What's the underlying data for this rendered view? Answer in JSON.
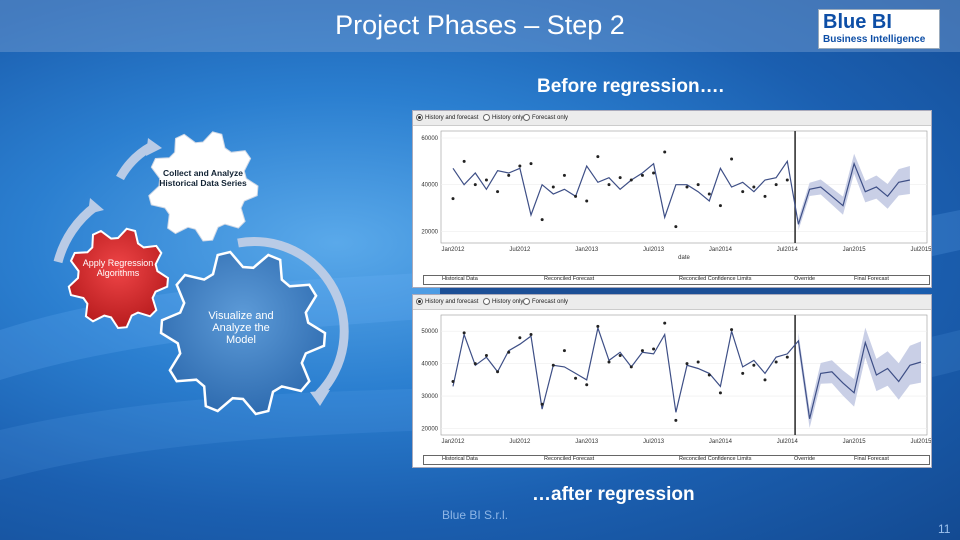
{
  "slide": {
    "title": "Project Phases – Step 2",
    "logo": {
      "line1": "Blue BI",
      "line2": "Business Intelligence"
    },
    "caption_before": "Before regression….",
    "caption_after": "…after regression",
    "footer": "Blue BI S.r.l.",
    "page_number": "11"
  },
  "gears": {
    "collect": "Collect and Analyze Historical Data Series",
    "apply": "Apply Regression Algorithms",
    "visualize": "Visualize and Analyze the Model"
  },
  "chart_controls": {
    "options": [
      "History and forecast",
      "History only",
      "Forecast only"
    ],
    "selected": "History and forecast"
  },
  "legend": [
    "Historical Data",
    "Reconciled Forecast",
    "Reconciled Confidence Limits",
    "Override",
    "Final Forecast"
  ],
  "colors": {
    "line": "#3e4f86",
    "band": "#c9cfe6",
    "gear_red": "#d6282a",
    "gear_blue": "#3f7ec0",
    "vline": "#333333"
  },
  "chart_data": [
    {
      "type": "line",
      "title": "",
      "xlabel": "date",
      "ylabel": "",
      "x_ticks": [
        "Jan2012",
        "Jul2012",
        "Jan2013",
        "Jul2013",
        "Jan2014",
        "Jul2014",
        "Jan2015",
        "Jul2015"
      ],
      "y_ticks": [
        20000,
        40000,
        60000
      ],
      "ylim": [
        15000,
        63000
      ],
      "history_end": "Jul2014",
      "series": [
        {
          "name": "Historical Data",
          "values": [
            34000,
            50000,
            40000,
            42000,
            37000,
            44000,
            48000,
            49000,
            25000,
            39000,
            44000,
            35000,
            33000,
            52000,
            40000,
            43000,
            42000,
            44000,
            45000,
            54000,
            22000,
            39000,
            40000,
            36000,
            31000,
            51000,
            37000,
            39000,
            35000,
            40000,
            42000
          ]
        },
        {
          "name": "Reconciled Forecast",
          "values": [
            47000,
            40000,
            45000,
            38000,
            46000,
            45000,
            47000,
            27000,
            40000,
            36000,
            38000,
            35000,
            48000,
            41000,
            43000,
            38000,
            42000,
            45000,
            49000,
            26000,
            40000,
            40000,
            37000,
            33000,
            47000,
            39000,
            41000,
            37000,
            42000,
            43000,
            50000,
            23000,
            38000,
            39000,
            35000,
            31000,
            49000,
            37000,
            39000,
            35000,
            41000,
            42000
          ]
        }
      ]
    },
    {
      "type": "line",
      "title": "",
      "xlabel": "",
      "ylabel": "",
      "x_ticks": [
        "Jan2012",
        "Jul2012",
        "Jan2013",
        "Jul2013",
        "Jan2014",
        "Jul2014",
        "Jan2015",
        "Jul2015"
      ],
      "y_ticks": [
        20000,
        30000,
        40000,
        50000
      ],
      "ylim": [
        18000,
        55000
      ],
      "history_end": "Jul2014",
      "series": [
        {
          "name": "Historical Data",
          "values": [
            34500,
            49500,
            40000,
            42500,
            37500,
            43500,
            48000,
            49000,
            27500,
            39500,
            44000,
            35500,
            33500,
            51500,
            40500,
            42500,
            39000,
            44000,
            44500,
            52500,
            22500,
            40000,
            40500,
            36500,
            31000,
            50500,
            37000,
            39500,
            35000,
            40500,
            42000
          ]
        },
        {
          "name": "Reconciled Forecast",
          "values": [
            33000,
            49000,
            39500,
            42000,
            37500,
            44000,
            46000,
            48500,
            26000,
            39500,
            39000,
            37000,
            35000,
            51000,
            41000,
            43500,
            39000,
            43500,
            43000,
            49000,
            25000,
            39500,
            38500,
            37000,
            33000,
            50000,
            39000,
            41000,
            37000,
            42000,
            43000,
            47000,
            23000,
            37000,
            37500,
            34000,
            31000,
            46500,
            36500,
            38500,
            34500,
            39500,
            40500
          ]
        }
      ]
    }
  ]
}
